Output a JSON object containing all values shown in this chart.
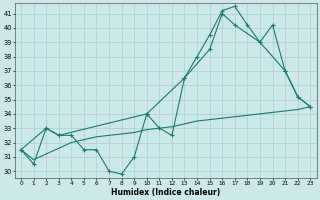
{
  "xlabel": "Humidex (Indice chaleur)",
  "xlim": [
    -0.5,
    23.5
  ],
  "ylim": [
    29.5,
    41.7
  ],
  "yticks": [
    30,
    31,
    32,
    33,
    34,
    35,
    36,
    37,
    38,
    39,
    40,
    41
  ],
  "xticks": [
    0,
    1,
    2,
    3,
    4,
    5,
    6,
    7,
    8,
    9,
    10,
    11,
    12,
    13,
    14,
    15,
    16,
    17,
    18,
    19,
    20,
    21,
    22,
    23
  ],
  "line_color": "#1a7a6e",
  "bg_color": "#cce8e8",
  "grid_color": "#a8d0d0",
  "line1_x": [
    0,
    1,
    2,
    3,
    4,
    5,
    6,
    7,
    8,
    9,
    10,
    11,
    12,
    13,
    14,
    15,
    16,
    17,
    18,
    19,
    20,
    21,
    22,
    23
  ],
  "line1_y": [
    31.5,
    30.5,
    33.0,
    32.5,
    32.5,
    31.5,
    31.5,
    30.0,
    29.8,
    31.0,
    34.0,
    33.0,
    32.5,
    36.5,
    38.0,
    39.5,
    41.2,
    41.5,
    40.2,
    39.0,
    40.2,
    37.0,
    35.2,
    34.5
  ],
  "line2_x": [
    0,
    2,
    3,
    10,
    13,
    15,
    16,
    17,
    19,
    21,
    22,
    23
  ],
  "line2_y": [
    31.5,
    33.0,
    32.5,
    34.0,
    36.5,
    38.5,
    41.0,
    40.2,
    39.0,
    37.0,
    35.2,
    34.5
  ],
  "line3_x": [
    0,
    1,
    2,
    3,
    4,
    5,
    6,
    7,
    8,
    9,
    10,
    11,
    12,
    13,
    14,
    15,
    16,
    17,
    18,
    19,
    20,
    21,
    22,
    23
  ],
  "line3_y": [
    31.5,
    30.8,
    31.2,
    31.6,
    32.0,
    32.2,
    32.4,
    32.5,
    32.6,
    32.7,
    32.9,
    33.0,
    33.1,
    33.3,
    33.5,
    33.6,
    33.7,
    33.8,
    33.9,
    34.0,
    34.1,
    34.2,
    34.3,
    34.5
  ]
}
